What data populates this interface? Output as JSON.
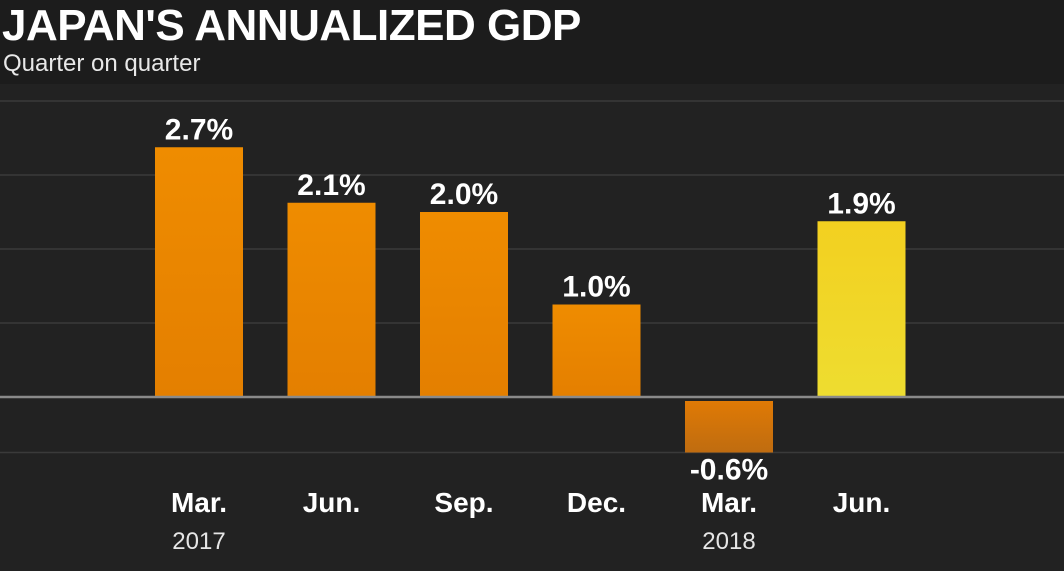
{
  "header": {
    "title": "JAPAN'S ANNUALIZED GDP",
    "subtitle": "Quarter on quarter"
  },
  "colors": {
    "background": "#222222",
    "header_band": "#1c1c1c",
    "bar_orange": "#ef8c00",
    "bar_highlight": "#f3d020",
    "gridline": "#3a3a3a",
    "zero_line": "#8a8a8a"
  },
  "chart_data": {
    "type": "bar",
    "title": "JAPAN'S ANNUALIZED GDP",
    "subtitle": "Quarter on quarter",
    "categories": [
      "Mar.",
      "Jun.",
      "Sep.",
      "Dec.",
      "Mar.",
      "Jun."
    ],
    "year_labels": [
      "2017",
      "",
      "",
      "",
      "2018",
      ""
    ],
    "values": [
      2.7,
      2.1,
      2.0,
      1.0,
      -0.6,
      1.9
    ],
    "value_labels": [
      "2.7%",
      "2.1%",
      "2.0%",
      "1.0%",
      "-0.6%",
      "1.9%"
    ],
    "highlight_index": 5,
    "ylim": [
      -0.6,
      3.2
    ],
    "gridlines": [
      -0.6,
      0.8,
      1.6,
      2.4,
      3.2
    ],
    "grid": true,
    "legend": "none",
    "xlabel": "",
    "ylabel": ""
  }
}
